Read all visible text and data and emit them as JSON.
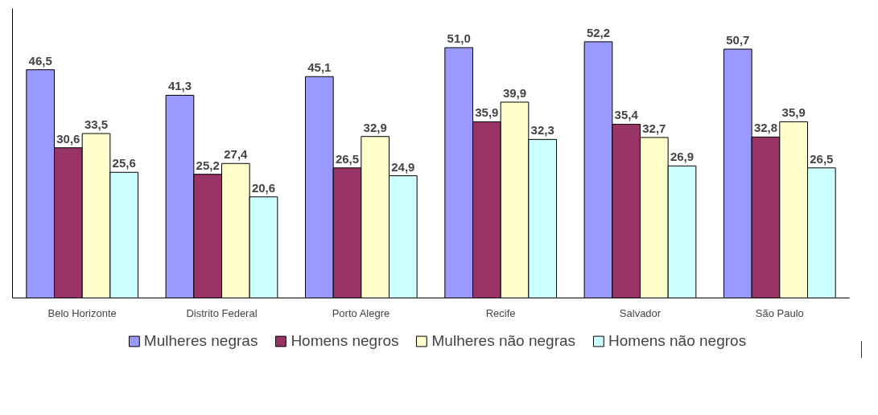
{
  "chart_data": {
    "type": "bar",
    "categories": [
      "Belo Horizonte",
      "Distrito Federal",
      "Porto Alegre",
      "Recife",
      "Salvador",
      "São Paulo"
    ],
    "series": [
      {
        "name": "Mulheres negras",
        "color": "#9999ff",
        "values": [
          46.5,
          41.3,
          45.1,
          51.0,
          52.2,
          50.7
        ],
        "value_labels": [
          "46,5",
          "41,3",
          "45,1",
          "51,0",
          "52,2",
          "50,7"
        ]
      },
      {
        "name": "Homens negros",
        "color": "#993366",
        "values": [
          30.6,
          25.2,
          26.5,
          35.9,
          35.4,
          32.8
        ],
        "value_labels": [
          "30,6",
          "25,2",
          "26,5",
          "35,9",
          "35,4",
          "32,8"
        ]
      },
      {
        "name": "Mulheres não negras",
        "color": "#ffffcc",
        "values": [
          33.5,
          27.4,
          32.9,
          39.9,
          32.7,
          35.9
        ],
        "value_labels": [
          "33,5",
          "27,4",
          "32,9",
          "39,9",
          "32,7",
          "35,9"
        ]
      },
      {
        "name": "Homens não negros",
        "color": "#ccffff",
        "values": [
          25.6,
          20.6,
          24.9,
          32.3,
          26.9,
          26.5
        ],
        "value_labels": [
          "25,6",
          "20,6",
          "24,9",
          "32,3",
          "26,9",
          "26,5"
        ]
      }
    ],
    "grid": false,
    "legend": "bottom"
  }
}
